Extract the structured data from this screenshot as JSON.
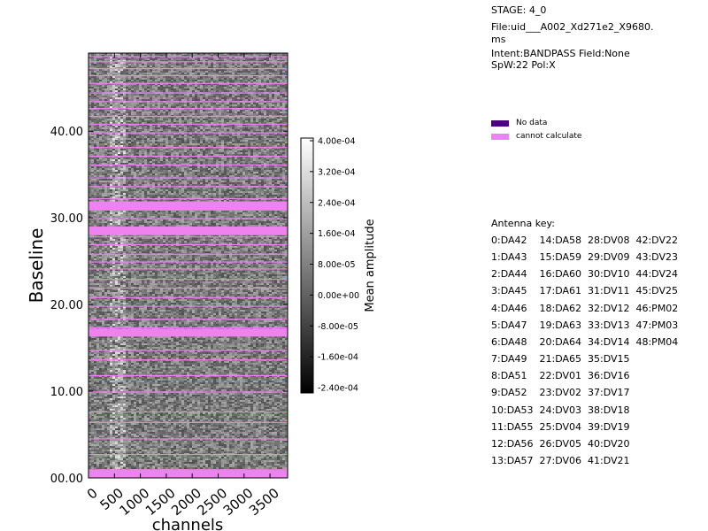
{
  "info": {
    "stage": "STAGE: 4_0",
    "file_line1": "File:uid___A002_Xd271e2_X9680.",
    "file_line2": "ms",
    "intent": "Intent:BANDPASS Field:None",
    "spw": "SpW:22 Pol:X"
  },
  "legend": {
    "items": [
      {
        "label": "No data",
        "color": "#4b0082"
      },
      {
        "label": "cannot calculate",
        "color": "#ee82ee"
      }
    ]
  },
  "antenna_key": {
    "title": "Antenna key:",
    "rows": [
      "0:DA42    14:DA58  28:DV08  42:DV22",
      "1:DA43    15:DA59  29:DV09  43:DV23",
      "2:DA44    16:DA60  30:DV10  44:DV24",
      "3:DA45    17:DA61  31:DV11  45:DV25",
      "4:DA46    18:DA62  32:DV12  46:PM02",
      "5:DA47    19:DA63  33:DV13  47:PM03",
      "6:DA48    20:DA64  34:DV14  48:PM04",
      "7:DA49    21:DA65  35:DV15",
      "8:DA51    22:DV01  36:DV16",
      "9:DA52    23:DV02  37:DV17",
      "10:DA53  24:DV03  38:DV18",
      "11:DA55  25:DV04  39:DV19",
      "12:DA56  26:DV05  40:DV20",
      "13:DA57  27:DV06  41:DV21"
    ]
  },
  "chart_data": {
    "type": "heatmap",
    "xlabel": "channels",
    "ylabel": "Baseline",
    "xlim": [
      0,
      3840
    ],
    "ylim": [
      0,
      49
    ],
    "x_ticks": [
      0,
      500,
      1000,
      1500,
      2000,
      2500,
      3000,
      3500
    ],
    "x_tick_labels": [
      "0",
      "500",
      "1000",
      "1500",
      "2000",
      "2500",
      "3000",
      "3500"
    ],
    "y_ticks": [
      0,
      10,
      20,
      30,
      40
    ],
    "y_tick_labels": [
      "00.00",
      "10.00",
      "20.00",
      "30.00",
      "40.00"
    ],
    "colorbar": {
      "label": "Mean amplitude",
      "min": -0.00024,
      "max": 0.0004,
      "ticks": [
        -0.00024,
        -0.00016,
        -8e-05,
        0,
        8e-05,
        0.00016,
        0.00024,
        0.00032,
        0.0004
      ],
      "tick_labels": [
        "-2.40e-04",
        "-1.60e-04",
        "-8.00e-05",
        "0.00e+00",
        "8.00e-05",
        "1.60e-04",
        "2.40e-04",
        "3.20e-04",
        "4.00e-04"
      ],
      "colormap": "gray"
    },
    "cannot_calculate_lines": [
      2.7,
      4.5,
      6.4,
      7.6,
      9.9,
      11.8,
      13.6,
      14.7,
      17.3,
      18.3,
      19.8,
      20.8,
      21.9,
      22.9,
      24.1,
      24.9,
      25.8,
      26.9,
      27.8,
      29.9,
      30.9,
      32.2,
      33.6,
      34.6,
      36.1,
      37.1,
      38.1,
      39.8,
      40.8,
      41.7,
      42.6,
      43.4,
      44.4,
      45.5,
      46.4,
      47.2,
      48.0,
      48.6
    ],
    "cannot_calculate_bands": [
      [
        0,
        1
      ],
      [
        16.3,
        17.2
      ],
      [
        28,
        29
      ],
      [
        30.9,
        31.9
      ]
    ],
    "cannot_calculate_color": "#ee82ee"
  }
}
